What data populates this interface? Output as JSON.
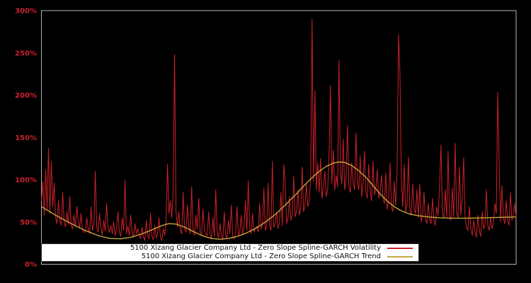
{
  "colors": {
    "background": "#000000",
    "plot_border": "#b3b3b3",
    "axis_label": "#d01f2e",
    "volatility_line": "#cc2129",
    "trend_line": "#c9a63c",
    "legend_background": "#ffffff",
    "legend_text": "#111111"
  },
  "chart_data": {
    "type": "line",
    "title": "",
    "xlabel": "",
    "ylabel": "",
    "ylim": [
      0,
      300
    ],
    "y_unit": "%",
    "y_tick_labels": [
      "0%",
      "50%",
      "100%",
      "150%",
      "200%",
      "250%",
      "300%"
    ],
    "x_tick_labels": [],
    "grid": false,
    "legend_position": "inside bottom-left, white box, labels right-aligned with line samples at right",
    "x_axis_note": "time axis, no tick labels shown; volatility sampled evenly left-to-right, trend x given as fraction 0-1 of plot width",
    "series": [
      {
        "name": "5100 Xizang Glacier Company Ltd - Zero Slope Spline-GARCH Volatility",
        "color": "#cc2129",
        "unit": "%",
        "values": [
          75,
          98,
          58,
          112,
          65,
          137,
          60,
          122,
          68,
          96,
          55,
          48,
          75,
          52,
          46,
          85,
          50,
          44,
          62,
          47,
          80,
          45,
          42,
          58,
          44,
          68,
          52,
          43,
          60,
          41,
          38,
          38,
          55,
          42,
          36,
          68,
          40,
          47,
          110,
          44,
          38,
          60,
          42,
          35,
          52,
          39,
          72,
          44,
          38,
          46,
          36,
          50,
          34,
          42,
          62,
          38,
          33,
          55,
          40,
          99,
          36,
          45,
          34,
          58,
          38,
          32,
          48,
          36,
          42,
          35,
          30,
          44,
          32,
          28,
          52,
          34,
          30,
          60,
          33,
          29,
          46,
          31,
          36,
          55,
          32,
          28,
          42,
          34,
          52,
          118,
          60,
          75,
          55,
          88,
          248,
          62,
          44,
          62,
          40,
          36,
          85,
          42,
          38,
          70,
          45,
          36,
          92,
          40,
          34,
          58,
          42,
          78,
          38,
          35,
          65,
          40,
          36,
          34,
          62,
          36,
          30,
          55,
          33,
          88,
          38,
          31,
          48,
          34,
          29,
          62,
          35,
          30,
          52,
          36,
          70,
          33,
          30,
          36,
          68,
          34,
          38,
          58,
          35,
          44,
          75,
          40,
          99,
          42,
          36,
          60,
          38,
          42,
          45,
          38,
          72,
          42,
          46,
          90,
          40,
          44,
          96,
          46,
          40,
          122,
          44,
          48,
          62,
          42,
          50,
          85,
          46,
          118,
          95,
          48,
          55,
          80,
          52,
          58,
          104,
          56,
          62,
          88,
          58,
          66,
          115,
          62,
          70,
          95,
          68,
          75,
          102,
          290,
          98,
          205,
          88,
          120,
          85,
          125,
          78,
          92,
          110,
          80,
          88,
          130,
          211,
          95,
          135,
          88,
          105,
          92,
          241,
          110,
          95,
          148,
          88,
          102,
          164,
          92,
          85,
          120,
          96,
          88,
          155,
          98,
          88,
          128,
          80,
          95,
          134,
          85,
          78,
          118,
          88,
          75,
          122,
          82,
          90,
          112,
          78,
          85,
          105,
          80,
          72,
          108,
          65,
          75,
          120,
          68,
          62,
          98,
          70,
          112,
          272,
          225,
          100,
          68,
          118,
          62,
          70,
          127,
          65,
          58,
          95,
          66,
          60,
          88,
          55,
          95,
          50,
          58,
          85,
          52,
          48,
          72,
          54,
          48,
          78,
          52,
          46,
          68,
          58,
          95,
          141,
          60,
          55,
          88,
          56,
          134,
          58,
          52,
          90,
          56,
          143,
          62,
          54,
          115,
          58,
          80,
          126,
          55,
          44,
          40,
          68,
          42,
          34,
          52,
          38,
          32,
          58,
          40,
          33,
          62,
          42,
          46,
          88,
          46,
          40,
          55,
          42,
          48,
          72,
          60,
          203,
          122,
          50,
          93,
          54,
          48,
          75,
          52,
          46,
          85,
          52,
          58,
          72,
          55
        ]
      },
      {
        "name": "5100 Xizang Glacier Company Ltd - Zero Slope Spline-GARCH Trend",
        "color": "#c9a63c",
        "unit": "%",
        "points": [
          [
            0,
            68
          ],
          [
            0.033,
            57
          ],
          [
            0.063,
            48
          ],
          [
            0.092,
            40
          ],
          [
            0.122,
            33.5
          ],
          [
            0.145,
            30.5
          ],
          [
            0.167,
            30
          ],
          [
            0.189,
            32
          ],
          [
            0.212,
            36
          ],
          [
            0.234,
            41
          ],
          [
            0.253,
            45.5
          ],
          [
            0.268,
            48
          ],
          [
            0.283,
            47.5
          ],
          [
            0.301,
            44
          ],
          [
            0.319,
            39
          ],
          [
            0.338,
            34
          ],
          [
            0.358,
            30.5
          ],
          [
            0.376,
            29.5
          ],
          [
            0.394,
            30.5
          ],
          [
            0.413,
            33
          ],
          [
            0.432,
            37
          ],
          [
            0.45,
            42
          ],
          [
            0.472,
            50
          ],
          [
            0.495,
            60
          ],
          [
            0.517,
            72
          ],
          [
            0.54,
            85
          ],
          [
            0.562,
            98
          ],
          [
            0.581,
            108
          ],
          [
            0.599,
            115.5
          ],
          [
            0.614,
            119.5
          ],
          [
            0.626,
            121
          ],
          [
            0.639,
            120.5
          ],
          [
            0.653,
            117
          ],
          [
            0.668,
            111
          ],
          [
            0.683,
            103
          ],
          [
            0.698,
            93.5
          ],
          [
            0.712,
            84
          ],
          [
            0.727,
            75.5
          ],
          [
            0.742,
            68.5
          ],
          [
            0.757,
            63.5
          ],
          [
            0.775,
            59.5
          ],
          [
            0.793,
            57.5
          ],
          [
            0.815,
            56
          ],
          [
            0.838,
            55
          ],
          [
            0.867,
            54.5
          ],
          [
            0.897,
            54.5
          ],
          [
            0.934,
            55
          ],
          [
            0.972,
            55.5
          ],
          [
            1,
            56
          ]
        ]
      }
    ]
  }
}
